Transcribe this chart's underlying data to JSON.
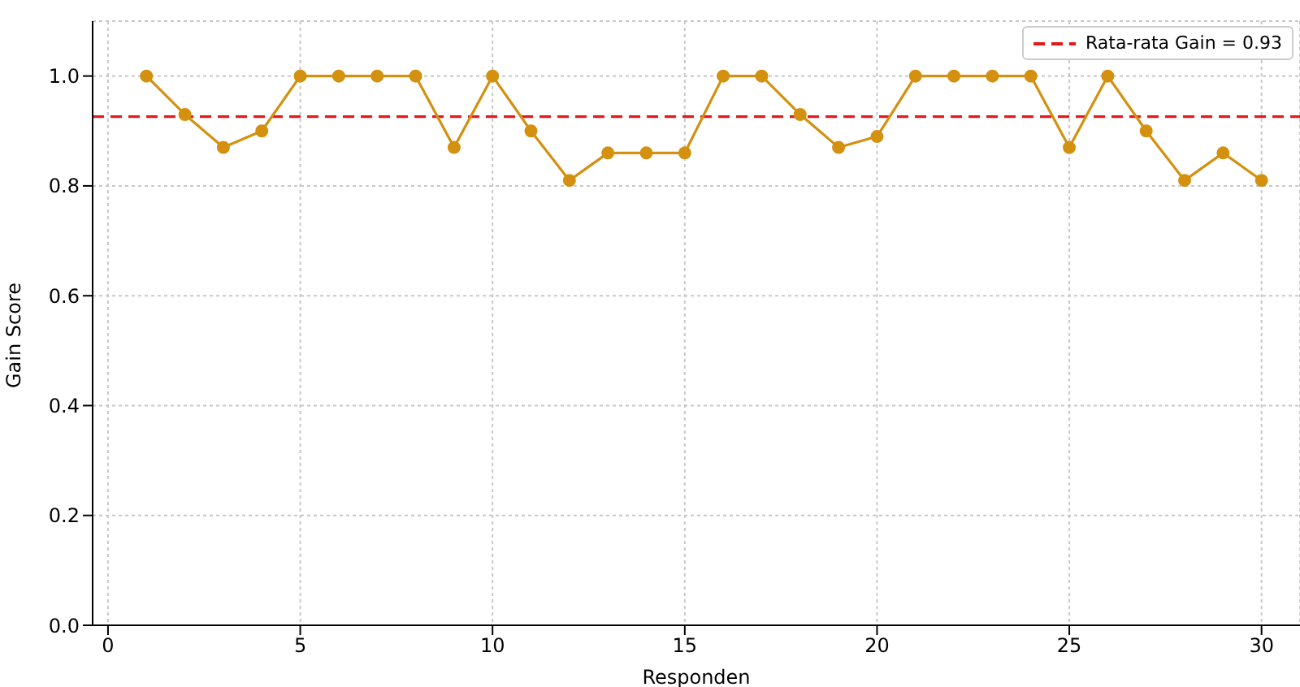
{
  "chart_data": {
    "type": "line",
    "xlabel": "Responden",
    "ylabel": "Gain Score",
    "x": [
      1,
      2,
      3,
      4,
      5,
      6,
      7,
      8,
      9,
      10,
      11,
      12,
      13,
      14,
      15,
      16,
      17,
      18,
      19,
      20,
      21,
      22,
      23,
      24,
      25,
      26,
      27,
      28,
      29,
      30
    ],
    "series": [
      {
        "color": "#d4900f",
        "values": [
          1.0,
          0.93,
          0.87,
          0.9,
          1.0,
          1.0,
          1.0,
          1.0,
          0.87,
          1.0,
          0.9,
          0.81,
          0.86,
          0.86,
          0.86,
          1.0,
          1.0,
          0.93,
          0.87,
          0.89,
          1.0,
          1.0,
          1.0,
          1.0,
          0.87,
          1.0,
          0.9,
          0.81,
          0.86,
          0.81
        ]
      }
    ],
    "xlim": [
      -0.4,
      31
    ],
    "xticks": [
      0,
      5,
      10,
      15,
      20,
      25,
      30
    ],
    "ylim": [
      0,
      1.1
    ],
    "yticks": [
      {
        "value": 0,
        "label": "0.0"
      },
      0.2,
      0.4,
      0.6,
      0.8,
      {
        "value": 1,
        "label": "1.0"
      }
    ],
    "ref_lines": [
      {
        "axis": "y",
        "value": 0.926,
        "label": "Rata-rata Gain = 0.93",
        "color": "#e3191c",
        "line_style": "dashed"
      }
    ],
    "grid": true,
    "legend": "top right",
    "marker": "circle",
    "line_style": "solid"
  }
}
